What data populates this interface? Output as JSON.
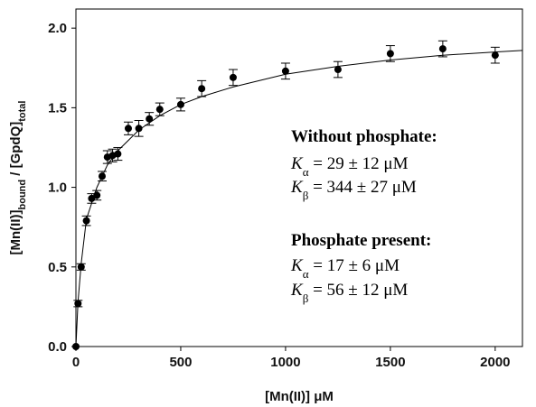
{
  "chart_data": {
    "type": "scatter",
    "xlabel": "[Mn(II)] μM",
    "ylabel": [
      {
        "text": "[Mn(II)]"
      },
      {
        "sub": "bound"
      },
      {
        "text": " / [GpdQ]"
      },
      {
        "sub": "total"
      }
    ],
    "xlim": [
      0,
      2130
    ],
    "ylim": [
      0,
      2.12
    ],
    "xticks": [
      0,
      500,
      1000,
      1500,
      2000
    ],
    "yticks": [
      {
        "value": 0,
        "label": "0.0"
      },
      {
        "value": 0.5,
        "label": "0.5"
      },
      {
        "value": 1,
        "label": "1.0"
      },
      {
        "value": 1.5,
        "label": "1.5"
      },
      {
        "value": 2,
        "label": "2.0"
      }
    ],
    "color": "#000000",
    "x": [
      0,
      10,
      25,
      50,
      75,
      100,
      125,
      150,
      175,
      200,
      250,
      300,
      350,
      400,
      500,
      600,
      750,
      1000,
      1250,
      1500,
      1750,
      2000
    ],
    "values": [
      0,
      0.27,
      0.5,
      0.79,
      0.93,
      0.95,
      1.07,
      1.19,
      1.2,
      1.21,
      1.37,
      1.37,
      1.43,
      1.49,
      1.52,
      1.62,
      1.69,
      1.73,
      1.74,
      1.84,
      1.87,
      1.83
    ],
    "errors": [
      0,
      0.02,
      0.02,
      0.03,
      0.03,
      0.03,
      0.03,
      0.04,
      0.04,
      0.04,
      0.04,
      0.05,
      0.04,
      0.04,
      0.04,
      0.05,
      0.05,
      0.05,
      0.05,
      0.05,
      0.05,
      0.05
    ],
    "fit": {
      "x": [
        0,
        10,
        25,
        50,
        100,
        150,
        200,
        300,
        400,
        500,
        600,
        750,
        1000,
        1250,
        1500,
        1750,
        2000,
        2130
      ],
      "values": [
        0,
        0.28,
        0.52,
        0.8,
        1.0,
        1.14,
        1.23,
        1.36,
        1.45,
        1.52,
        1.57,
        1.63,
        1.71,
        1.76,
        1.8,
        1.83,
        1.85,
        1.86
      ]
    },
    "annotations": [
      {
        "heading": "Without phosphate:",
        "lines": [
          {
            "symbol": "K",
            "sub": "α",
            "text": " = 29 ± 12 μM"
          },
          {
            "symbol": "K",
            "sub": "β",
            "text": " = 344 ± 27 μM"
          }
        ]
      },
      {
        "heading": "Phosphate present:",
        "lines": [
          {
            "symbol": "K",
            "sub": "α",
            "text": " = 17 ± 6 μM"
          },
          {
            "symbol": "K",
            "sub": "β",
            "text": " = 56 ± 12 μM"
          }
        ]
      }
    ]
  }
}
